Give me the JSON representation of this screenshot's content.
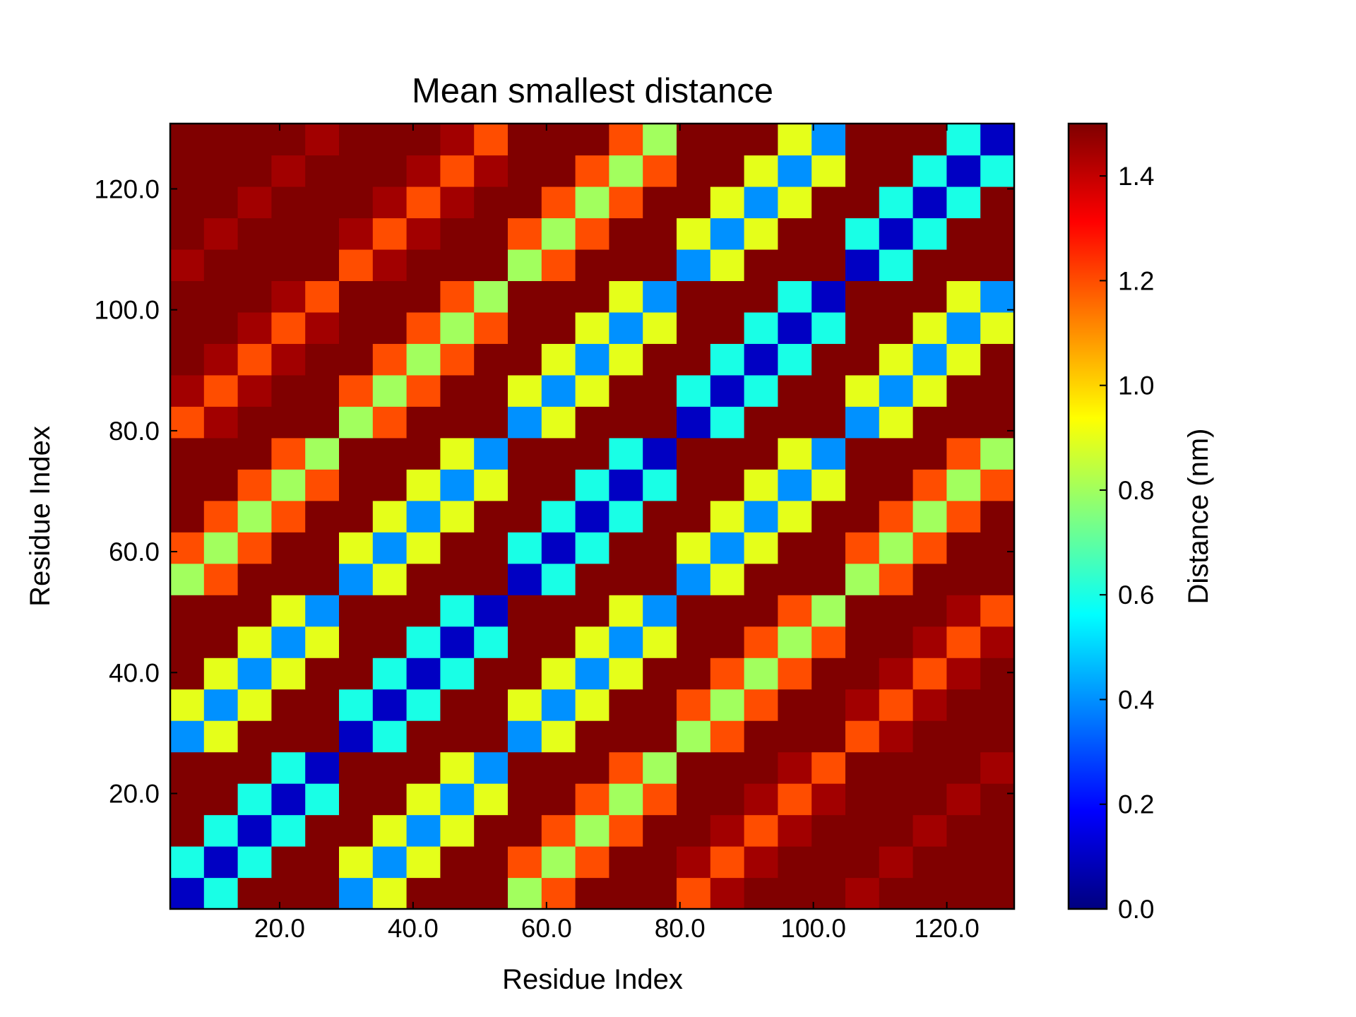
{
  "chart_data": {
    "type": "heatmap",
    "title": "Mean smallest distance",
    "xlabel": "Residue Index",
    "ylabel": "Residue Index",
    "colorbar_label": "Distance (nm)",
    "colormap": "jet",
    "clim": [
      0,
      1.5
    ],
    "xlim": [
      3.6,
      130.1
    ],
    "ylim": [
      0.9,
      130.8
    ],
    "xticks": [
      {
        "value": 20,
        "label": "20.0"
      },
      {
        "value": 40,
        "label": "40.0"
      },
      {
        "value": 60,
        "label": "60.0"
      },
      {
        "value": 80,
        "label": "80.0"
      },
      {
        "value": 100,
        "label": "100.0"
      },
      {
        "value": 120,
        "label": "120.0"
      }
    ],
    "yticks": [
      {
        "value": 20,
        "label": "20.0"
      },
      {
        "value": 40,
        "label": "40.0"
      },
      {
        "value": 60,
        "label": "60.0"
      },
      {
        "value": 80,
        "label": "80.0"
      },
      {
        "value": 100,
        "label": "100.0"
      },
      {
        "value": 120,
        "label": "120.0"
      }
    ],
    "cticks": [
      {
        "value": 0,
        "label": "0.0"
      },
      0.2,
      0.4,
      0.6,
      0.8,
      {
        "value": 1,
        "label": "1.0"
      },
      1.2,
      1.4
    ],
    "z": [
      [
        0.1,
        0.6,
        1.5,
        1.5,
        1.5,
        0.4,
        0.9,
        1.5,
        1.5,
        1.5,
        0.8,
        1.2,
        1.5,
        1.5,
        1.5,
        1.2,
        1.45,
        1.5,
        1.5,
        1.5,
        1.45,
        1.5,
        1.5,
        1.5,
        1.5
      ],
      [
        0.6,
        0.1,
        0.6,
        1.5,
        1.5,
        0.9,
        0.4,
        0.9,
        1.5,
        1.5,
        1.2,
        0.8,
        1.2,
        1.5,
        1.5,
        1.45,
        1.2,
        1.45,
        1.5,
        1.5,
        1.5,
        1.45,
        1.5,
        1.5,
        1.5
      ],
      [
        1.5,
        0.6,
        0.1,
        0.6,
        1.5,
        1.5,
        0.9,
        0.4,
        0.9,
        1.5,
        1.5,
        1.2,
        0.8,
        1.2,
        1.5,
        1.5,
        1.45,
        1.2,
        1.45,
        1.5,
        1.5,
        1.5,
        1.45,
        1.5,
        1.5
      ],
      [
        1.5,
        1.5,
        0.6,
        0.1,
        0.6,
        1.5,
        1.5,
        0.9,
        0.4,
        0.9,
        1.5,
        1.5,
        1.2,
        0.8,
        1.2,
        1.5,
        1.5,
        1.45,
        1.2,
        1.45,
        1.5,
        1.5,
        1.5,
        1.45,
        1.5
      ],
      [
        1.5,
        1.5,
        1.5,
        0.6,
        0.1,
        1.5,
        1.5,
        1.5,
        0.9,
        0.4,
        1.5,
        1.5,
        1.5,
        1.2,
        0.8,
        1.5,
        1.5,
        1.5,
        1.45,
        1.2,
        1.5,
        1.5,
        1.5,
        1.5,
        1.45
      ],
      [
        0.4,
        0.9,
        1.5,
        1.5,
        1.5,
        0.1,
        0.6,
        1.5,
        1.5,
        1.5,
        0.4,
        0.9,
        1.5,
        1.5,
        1.5,
        0.8,
        1.2,
        1.5,
        1.5,
        1.5,
        1.2,
        1.45,
        1.5,
        1.5,
        1.5
      ],
      [
        0.9,
        0.4,
        0.9,
        1.5,
        1.5,
        0.6,
        0.1,
        0.6,
        1.5,
        1.5,
        0.9,
        0.4,
        0.9,
        1.5,
        1.5,
        1.2,
        0.8,
        1.2,
        1.5,
        1.5,
        1.45,
        1.2,
        1.45,
        1.5,
        1.5
      ],
      [
        1.5,
        0.9,
        0.4,
        0.9,
        1.5,
        1.5,
        0.6,
        0.1,
        0.6,
        1.5,
        1.5,
        0.9,
        0.4,
        0.9,
        1.5,
        1.5,
        1.2,
        0.8,
        1.2,
        1.5,
        1.5,
        1.45,
        1.2,
        1.45,
        1.5
      ],
      [
        1.5,
        1.5,
        0.9,
        0.4,
        0.9,
        1.5,
        1.5,
        0.6,
        0.1,
        0.6,
        1.5,
        1.5,
        0.9,
        0.4,
        0.9,
        1.5,
        1.5,
        1.2,
        0.8,
        1.2,
        1.5,
        1.5,
        1.45,
        1.2,
        1.45
      ],
      [
        1.5,
        1.5,
        1.5,
        0.9,
        0.4,
        1.5,
        1.5,
        1.5,
        0.6,
        0.1,
        1.5,
        1.5,
        1.5,
        0.9,
        0.4,
        1.5,
        1.5,
        1.5,
        1.2,
        0.8,
        1.5,
        1.5,
        1.5,
        1.45,
        1.2
      ],
      [
        0.8,
        1.2,
        1.5,
        1.5,
        1.5,
        0.4,
        0.9,
        1.5,
        1.5,
        1.5,
        0.1,
        0.6,
        1.5,
        1.5,
        1.5,
        0.4,
        0.9,
        1.5,
        1.5,
        1.5,
        0.8,
        1.2,
        1.5,
        1.5,
        1.5
      ],
      [
        1.2,
        0.8,
        1.2,
        1.5,
        1.5,
        0.9,
        0.4,
        0.9,
        1.5,
        1.5,
        0.6,
        0.1,
        0.6,
        1.5,
        1.5,
        0.9,
        0.4,
        0.9,
        1.5,
        1.5,
        1.2,
        0.8,
        1.2,
        1.5,
        1.5
      ],
      [
        1.5,
        1.2,
        0.8,
        1.2,
        1.5,
        1.5,
        0.9,
        0.4,
        0.9,
        1.5,
        1.5,
        0.6,
        0.1,
        0.6,
        1.5,
        1.5,
        0.9,
        0.4,
        0.9,
        1.5,
        1.5,
        1.2,
        0.8,
        1.2,
        1.5
      ],
      [
        1.5,
        1.5,
        1.2,
        0.8,
        1.2,
        1.5,
        1.5,
        0.9,
        0.4,
        0.9,
        1.5,
        1.5,
        0.6,
        0.1,
        0.6,
        1.5,
        1.5,
        0.9,
        0.4,
        0.9,
        1.5,
        1.5,
        1.2,
        0.8,
        1.2
      ],
      [
        1.5,
        1.5,
        1.5,
        1.2,
        0.8,
        1.5,
        1.5,
        1.5,
        0.9,
        0.4,
        1.5,
        1.5,
        1.5,
        0.6,
        0.1,
        1.5,
        1.5,
        1.5,
        0.9,
        0.4,
        1.5,
        1.5,
        1.5,
        1.2,
        0.8
      ],
      [
        1.2,
        1.45,
        1.5,
        1.5,
        1.5,
        0.8,
        1.2,
        1.5,
        1.5,
        1.5,
        0.4,
        0.9,
        1.5,
        1.5,
        1.5,
        0.1,
        0.6,
        1.5,
        1.5,
        1.5,
        0.4,
        0.9,
        1.5,
        1.5,
        1.5
      ],
      [
        1.45,
        1.2,
        1.45,
        1.5,
        1.5,
        1.2,
        0.8,
        1.2,
        1.5,
        1.5,
        0.9,
        0.4,
        0.9,
        1.5,
        1.5,
        0.6,
        0.1,
        0.6,
        1.5,
        1.5,
        0.9,
        0.4,
        0.9,
        1.5,
        1.5
      ],
      [
        1.5,
        1.45,
        1.2,
        1.45,
        1.5,
        1.5,
        1.2,
        0.8,
        1.2,
        1.5,
        1.5,
        0.9,
        0.4,
        0.9,
        1.5,
        1.5,
        0.6,
        0.1,
        0.6,
        1.5,
        1.5,
        0.9,
        0.4,
        0.9,
        1.5
      ],
      [
        1.5,
        1.5,
        1.45,
        1.2,
        1.45,
        1.5,
        1.5,
        1.2,
        0.8,
        1.2,
        1.5,
        1.5,
        0.9,
        0.4,
        0.9,
        1.5,
        1.5,
        0.6,
        0.1,
        0.6,
        1.5,
        1.5,
        0.9,
        0.4,
        0.9
      ],
      [
        1.5,
        1.5,
        1.5,
        1.45,
        1.2,
        1.5,
        1.5,
        1.5,
        1.2,
        0.8,
        1.5,
        1.5,
        1.5,
        0.9,
        0.4,
        1.5,
        1.5,
        1.5,
        0.6,
        0.1,
        1.5,
        1.5,
        1.5,
        0.9,
        0.4
      ],
      [
        1.45,
        1.5,
        1.5,
        1.5,
        1.5,
        1.2,
        1.45,
        1.5,
        1.5,
        1.5,
        0.8,
        1.2,
        1.5,
        1.5,
        1.5,
        0.4,
        0.9,
        1.5,
        1.5,
        1.5,
        0.1,
        0.6,
        1.5,
        1.5,
        1.5
      ],
      [
        1.5,
        1.45,
        1.5,
        1.5,
        1.5,
        1.45,
        1.2,
        1.45,
        1.5,
        1.5,
        1.2,
        0.8,
        1.2,
        1.5,
        1.5,
        0.9,
        0.4,
        0.9,
        1.5,
        1.5,
        0.6,
        0.1,
        0.6,
        1.5,
        1.5
      ],
      [
        1.5,
        1.5,
        1.45,
        1.5,
        1.5,
        1.5,
        1.45,
        1.2,
        1.45,
        1.5,
        1.5,
        1.2,
        0.8,
        1.2,
        1.5,
        1.5,
        0.9,
        0.4,
        0.9,
        1.5,
        1.5,
        0.6,
        0.1,
        0.6,
        1.5
      ],
      [
        1.5,
        1.5,
        1.5,
        1.45,
        1.5,
        1.5,
        1.5,
        1.45,
        1.2,
        1.45,
        1.5,
        1.5,
        1.2,
        0.8,
        1.2,
        1.5,
        1.5,
        0.9,
        0.4,
        0.9,
        1.5,
        1.5,
        0.6,
        0.1,
        0.6
      ],
      [
        1.5,
        1.5,
        1.5,
        1.5,
        1.45,
        1.5,
        1.5,
        1.5,
        1.45,
        1.2,
        1.5,
        1.5,
        1.5,
        1.2,
        0.8,
        1.5,
        1.5,
        1.5,
        0.9,
        0.4,
        1.5,
        1.5,
        1.5,
        0.6,
        0.1
      ]
    ]
  }
}
